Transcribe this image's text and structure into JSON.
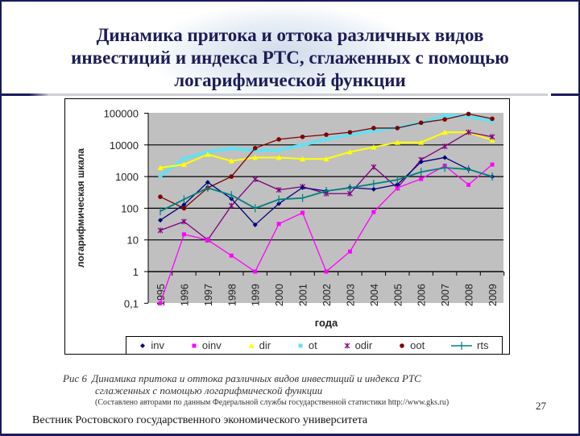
{
  "slide": {
    "title_lines": [
      "Динамика притока и оттока различных видов",
      "инвестиций и индекса РТС, сглаженных с помощью",
      "логарифмической функции"
    ],
    "caption": {
      "fig_label": "Рис 6",
      "line1": "Динамика притока и оттока различных видов инвестиций и индекса РТС",
      "line2": "сглаженных с помощью логарифмической функции",
      "source": "(Составлено авторами по данным Федеральной службы государственной статистики http://www.gks.ru)"
    },
    "page_number": "27",
    "journal": "Вестник Ростовского государственного экономического университета"
  },
  "colors": {
    "title": "#1c1c55",
    "plot_bg": "#c0c0c0",
    "inv": "#000080",
    "oinv": "#ff00ff",
    "dir": "#ffff00",
    "ot": "#66e0f0",
    "odir": "#800080",
    "oot": "#800000",
    "rts": "#008080"
  },
  "chart_data": {
    "type": "line",
    "title": "",
    "xlabel": "года",
    "ylabel": "логарифмическая шкала",
    "yscale": "log",
    "ylim": [
      0.1,
      100000
    ],
    "yticks": [
      "100000",
      "10000",
      "1000",
      "100",
      "10",
      "1",
      "0,1"
    ],
    "grid": true,
    "legend_position": "bottom",
    "categories": [
      "1995",
      "1996",
      "1997",
      "1998",
      "1999",
      "2000",
      "2001",
      "2002",
      "2003",
      "2004",
      "2005",
      "2006",
      "2007",
      "2008",
      "2009"
    ],
    "series": [
      {
        "name": "inv",
        "marker": "diamond",
        "values": [
          42,
          130,
          660,
          200,
          30,
          140,
          450,
          350,
          450,
          400,
          560,
          2900,
          4000,
          1700,
          1000
        ]
      },
      {
        "name": "oinv",
        "marker": "square",
        "values": [
          0.1,
          15,
          10,
          3.2,
          1,
          32,
          72,
          1,
          4.3,
          76,
          440,
          840,
          2200,
          550,
          2400
        ]
      },
      {
        "name": "dir",
        "marker": "triangle",
        "values": [
          1900,
          2400,
          5000,
          3100,
          4000,
          4000,
          3600,
          3600,
          6000,
          8500,
          12000,
          12000,
          25000,
          25000,
          14000
        ]
      },
      {
        "name": "ot",
        "marker": "square",
        "values": [
          1050,
          3700,
          6000,
          7600,
          6800,
          6800,
          10000,
          15000,
          21000,
          28000,
          35000,
          50000,
          85000,
          80000,
          56000
        ]
      },
      {
        "name": "odir",
        "marker": "x",
        "values": [
          20,
          38,
          10,
          120,
          820,
          380,
          480,
          290,
          290,
          2000,
          440,
          3400,
          9000,
          25000,
          18000
        ]
      },
      {
        "name": "oot",
        "marker": "circle",
        "values": [
          230,
          100,
          440,
          1000,
          7900,
          15000,
          18000,
          21000,
          25000,
          34000,
          34000,
          50000,
          64000,
          95000,
          67000
        ]
      },
      {
        "name": "rts",
        "marker": "plus",
        "values": [
          80,
          190,
          440,
          260,
          100,
          190,
          210,
          350,
          440,
          590,
          790,
          1400,
          1900,
          1700,
          1000
        ]
      }
    ]
  }
}
